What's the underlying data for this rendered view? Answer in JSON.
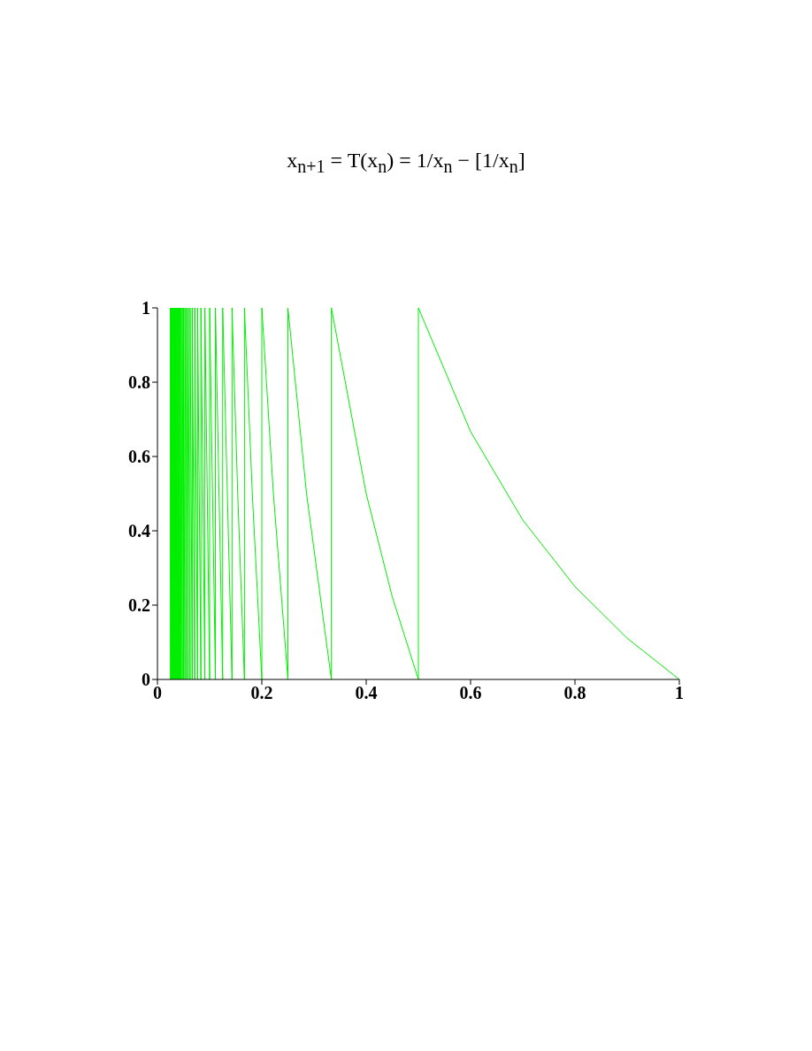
{
  "chart_data": {
    "type": "line",
    "title": "x$_{n+1}$ = T(x$_{n}$) = 1/x$_{n}$ − [1/x$_{n}$]",
    "x": [
      0.025,
      0.025,
      0.0256,
      0.0256,
      0.0263,
      0.0263,
      0.027,
      0.027,
      0.0278,
      0.0278,
      0.0286,
      0.0286,
      0.0294,
      0.0294,
      0.0303,
      0.0303,
      0.0313,
      0.0313,
      0.0323,
      0.0323,
      0.0333,
      0.0333,
      0.0345,
      0.0345,
      0.0357,
      0.0357,
      0.037,
      0.037,
      0.0385,
      0.0385,
      0.04,
      0.04,
      0.0417,
      0.0417,
      0.0435,
      0.0435,
      0.0455,
      0.0455,
      0.0476,
      0.0476,
      0.05,
      0.05,
      0.0526,
      0.0526,
      0.0556,
      0.0556,
      0.0588,
      0.0588,
      0.0625,
      0.0625,
      0.0667,
      0.0667,
      0.0714,
      0.0714,
      0.0769,
      0.0769,
      0.0833,
      0.0833,
      0.0909,
      0.0909,
      0.1,
      0.1,
      0.1111,
      0.1111,
      0.125,
      0.125,
      0.1429,
      0.1429,
      0.1538,
      0.1667,
      0.1667,
      0.1818,
      0.2,
      0.2,
      0.2222,
      0.25,
      0.25,
      0.2857,
      0.3333,
      0.3333,
      0.4,
      0.45,
      0.5,
      0.5,
      0.6,
      0.7,
      0.8,
      0.9,
      1
    ],
    "series": [
      {
        "color": "#00ee00",
        "values": [
          0,
          1,
          0,
          1,
          0,
          1,
          0,
          1,
          0,
          1,
          0,
          1,
          0,
          1,
          0,
          1,
          0,
          1,
          0,
          1,
          0,
          1,
          0,
          1,
          0,
          1,
          0,
          1,
          0,
          1,
          0,
          1,
          0,
          1,
          0,
          1,
          0,
          1,
          0,
          1,
          0,
          1,
          0,
          1,
          0,
          1,
          0,
          1,
          0,
          1,
          0,
          1,
          0,
          1,
          0,
          1,
          0,
          1,
          0,
          1,
          0,
          1,
          0,
          1,
          0,
          1,
          0,
          1,
          0.5,
          0,
          1,
          0.5,
          0,
          1,
          0.5,
          0,
          1,
          0.5,
          0,
          1,
          0.5,
          0.222,
          0,
          1,
          0.667,
          0.429,
          0.25,
          0.111,
          0
        ]
      }
    ],
    "xlim": [
      0,
      1
    ],
    "xticks": [
      0,
      0.2,
      0.4,
      0.6,
      0.8,
      1
    ],
    "ylim": [
      0,
      1
    ],
    "yticks": [
      0,
      0.2,
      0.4,
      0.6,
      0.8,
      1
    ]
  }
}
